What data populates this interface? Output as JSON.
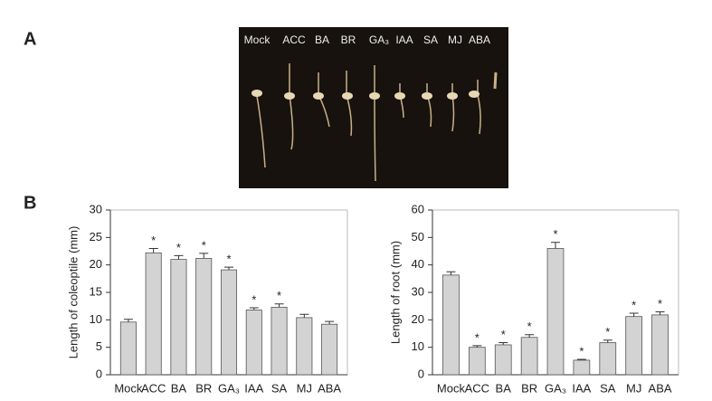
{
  "panel_a": {
    "label": "A",
    "sample_labels": [
      "Mock",
      "ACC",
      "BA",
      "BR",
      "GA₃",
      "IAA",
      "SA",
      "MJ",
      "ABA"
    ]
  },
  "panel_b": {
    "label": "B"
  },
  "chart_data": [
    {
      "type": "bar",
      "y_label": "Length of coleoptile (mm)",
      "categories": [
        "Mock",
        "ACC",
        "BA",
        "BR",
        "GA₃",
        "IAA",
        "SA",
        "MJ",
        "ABA"
      ],
      "values": [
        9.6,
        22.2,
        21.0,
        21.2,
        19.1,
        11.8,
        12.3,
        10.4,
        9.2
      ],
      "errors": [
        0.5,
        0.8,
        0.7,
        0.9,
        0.5,
        0.4,
        0.6,
        0.6,
        0.5
      ],
      "annotations": [
        null,
        "*",
        "*",
        "*",
        "*",
        "*",
        "*",
        null,
        null
      ],
      "color": "#d3d3d3",
      "ylim": [
        0,
        30
      ],
      "yticks": [
        0,
        5,
        10,
        15,
        20,
        25,
        30
      ]
    },
    {
      "type": "bar",
      "y_label": "Length of root (mm)",
      "categories": [
        "Mock",
        "ACC",
        "BA",
        "BR",
        "GA₃",
        "IAA",
        "SA",
        "MJ",
        "ABA"
      ],
      "values": [
        36.3,
        10.0,
        10.9,
        13.6,
        46.0,
        5.3,
        11.7,
        21.2,
        21.8
      ],
      "errors": [
        1.2,
        0.6,
        0.8,
        1.0,
        2.2,
        0.3,
        0.9,
        1.2,
        1.1
      ],
      "annotations": [
        null,
        "*",
        "*",
        "*",
        "*",
        "*",
        "*",
        "*",
        "*"
      ],
      "color": "#d3d3d3",
      "ylim": [
        0,
        60
      ],
      "yticks": [
        0,
        10,
        20,
        30,
        40,
        50,
        60
      ]
    }
  ]
}
